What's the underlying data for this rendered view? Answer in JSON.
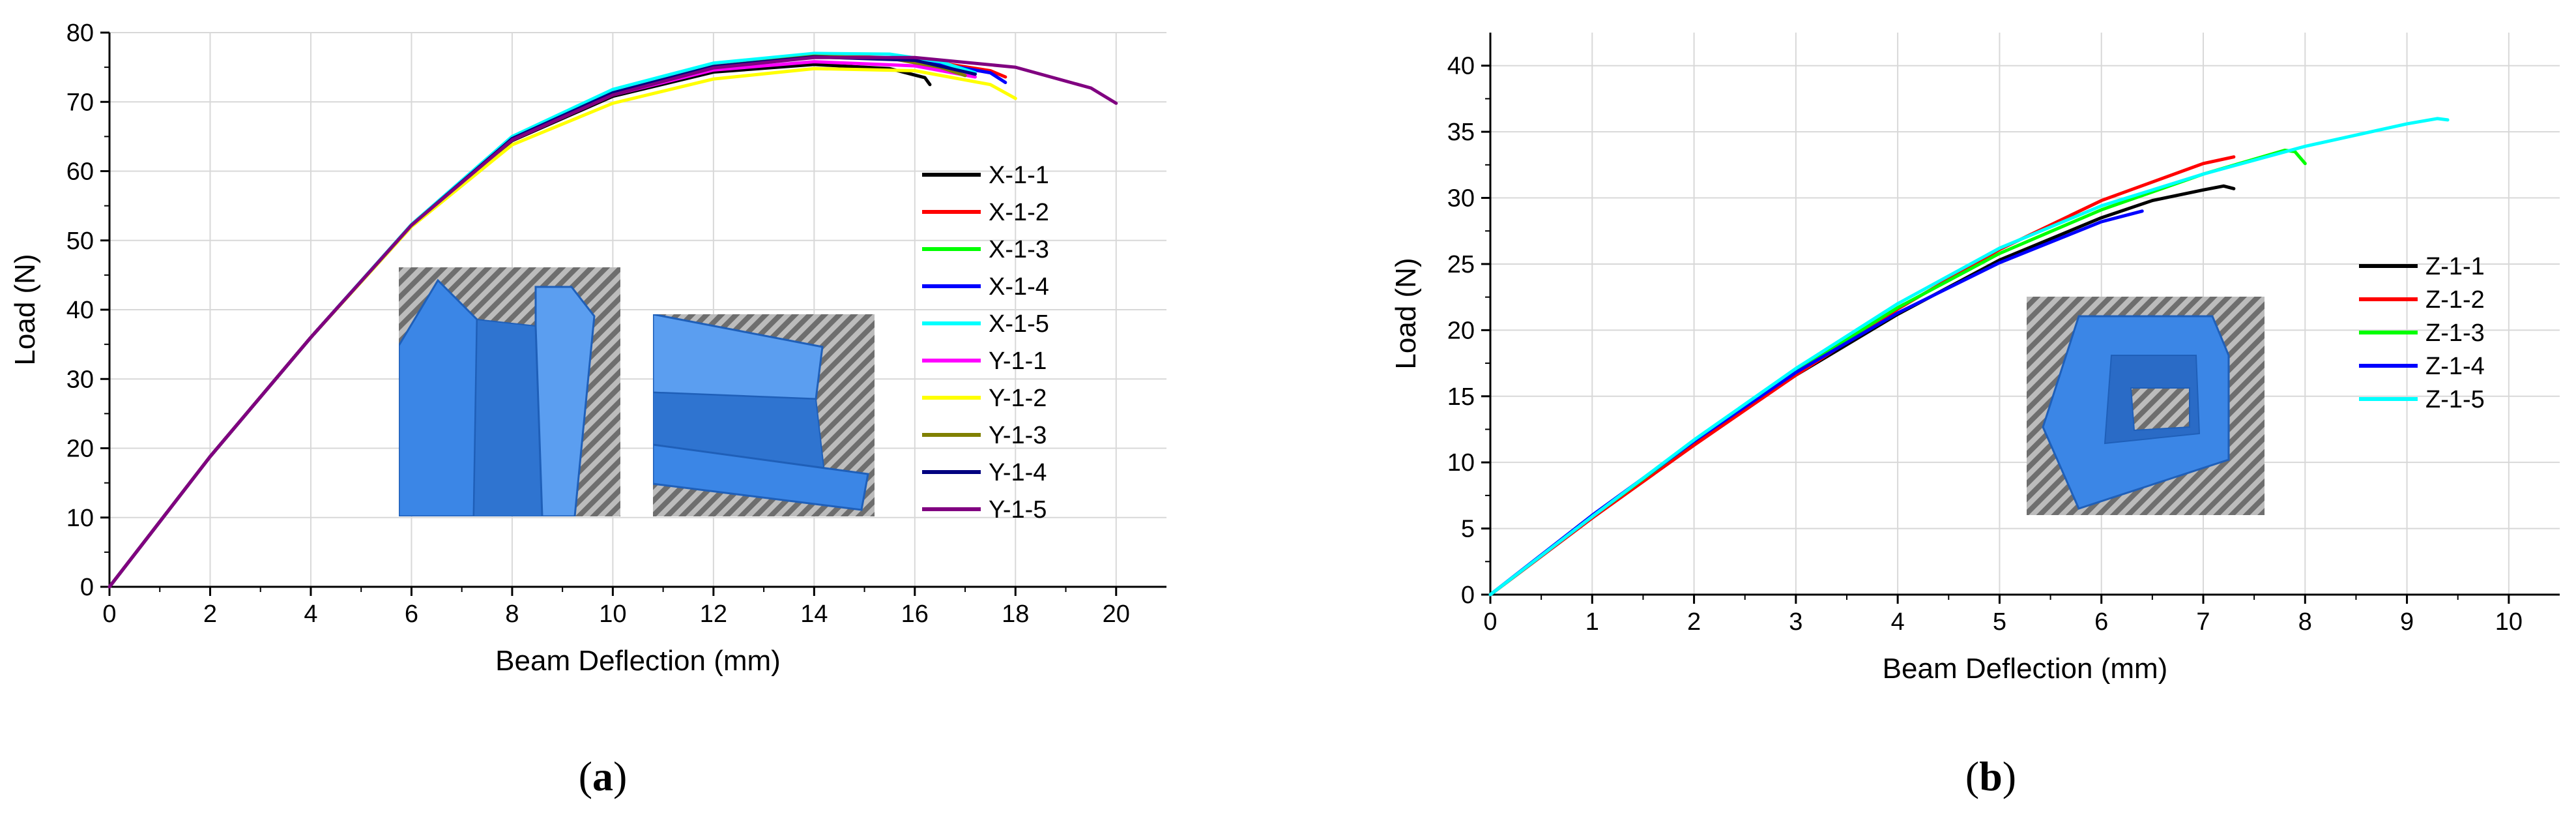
{
  "chart_data": [
    {
      "type": "line",
      "panel": "a",
      "panel_label": "a",
      "xlabel": "Beam Deflection (mm)",
      "ylabel": "Load (N)",
      "xlim": [
        0,
        21
      ],
      "ylim": [
        0,
        80
      ],
      "xticks": [
        0,
        2,
        4,
        6,
        8,
        10,
        12,
        14,
        16,
        18,
        20
      ],
      "yticks": [
        0,
        10,
        20,
        30,
        40,
        50,
        60,
        70,
        80
      ],
      "grid": true,
      "legend_position": "right",
      "series": [
        {
          "name": "X-1-1",
          "color": "#000000",
          "x": [
            0,
            2,
            4,
            6,
            8,
            10,
            12,
            14,
            15.5,
            16.2,
            16.3
          ],
          "y": [
            0,
            18.8,
            36,
            52.2,
            64.4,
            70.8,
            74.3,
            75.4,
            74.8,
            73.5,
            72.5
          ]
        },
        {
          "name": "X-1-2",
          "color": "#ff0000",
          "x": [
            0,
            2,
            4,
            6,
            8,
            10,
            12,
            14,
            16,
            17.5,
            17.8
          ],
          "y": [
            0,
            18.8,
            36,
            52.2,
            64.7,
            71.3,
            75.2,
            76.8,
            76.2,
            74.5,
            73.6
          ]
        },
        {
          "name": "X-1-3",
          "color": "#00ff00",
          "x": [
            0,
            2,
            4,
            6,
            8,
            10,
            12,
            14,
            15.8,
            16.6
          ],
          "y": [
            0,
            18.8,
            36,
            52.2,
            64.6,
            71.2,
            75,
            76.5,
            76.1,
            74.6
          ]
        },
        {
          "name": "X-1-4",
          "color": "#0000ff",
          "x": [
            0,
            2,
            4,
            6,
            8,
            10,
            12,
            14,
            16,
            17.5,
            17.8
          ],
          "y": [
            0,
            18.8,
            36,
            52.2,
            64.7,
            71.3,
            75.1,
            76.6,
            76.1,
            74.2,
            72.8
          ]
        },
        {
          "name": "X-1-5",
          "color": "#00ffff",
          "x": [
            0,
            2,
            4,
            6,
            8,
            10,
            12,
            14,
            15.5,
            16.5,
            17.2
          ],
          "y": [
            0,
            18.8,
            36,
            52.3,
            65,
            71.8,
            75.6,
            77,
            76.9,
            75.8,
            74.2
          ]
        },
        {
          "name": "Y-1-1",
          "color": "#ff00ff",
          "x": [
            0,
            2,
            4,
            6,
            8,
            10,
            12,
            14,
            16,
            17.2
          ],
          "y": [
            0,
            18.8,
            36,
            52.2,
            64.5,
            71,
            74.6,
            75.8,
            75.2,
            73.6
          ]
        },
        {
          "name": "Y-1-2",
          "color": "#ffff00",
          "x": [
            0,
            2,
            4,
            6,
            8,
            10,
            12,
            14,
            16,
            17.5,
            18
          ],
          "y": [
            0,
            18.8,
            36,
            52,
            63.8,
            69.8,
            73.3,
            74.8,
            74.5,
            72.5,
            70.5
          ]
        },
        {
          "name": "Y-1-3",
          "color": "#808000",
          "x": [
            0,
            2,
            4,
            6,
            8,
            10,
            12,
            14,
            15.5,
            16.5,
            17
          ],
          "y": [
            0,
            18.8,
            36,
            52.2,
            64.6,
            71.2,
            75.1,
            76.6,
            76.3,
            75,
            73.8
          ]
        },
        {
          "name": "Y-1-4",
          "color": "#000080",
          "x": [
            0,
            2,
            4,
            6,
            8,
            10,
            12,
            14,
            16,
            17.2
          ],
          "y": [
            0,
            18.8,
            36,
            52.2,
            64.7,
            71.3,
            75.1,
            76.5,
            76,
            74
          ]
        },
        {
          "name": "Y-1-5",
          "color": "#800080",
          "x": [
            0,
            2,
            4,
            6,
            8,
            10,
            12,
            14,
            16,
            18,
            19.5,
            20
          ],
          "y": [
            0,
            18.8,
            36,
            52.2,
            64.5,
            71,
            74.9,
            76.4,
            76.4,
            75,
            72,
            69.8
          ]
        }
      ]
    },
    {
      "type": "line",
      "panel": "b",
      "panel_label": "b",
      "xlabel": "Beam Deflection (mm)",
      "ylabel": "Load (N)",
      "xlim": [
        0,
        10.5
      ],
      "ylim": [
        0,
        42.5
      ],
      "xticks": [
        0,
        1,
        2,
        3,
        4,
        5,
        6,
        7,
        8,
        9,
        10
      ],
      "yticks": [
        0,
        5,
        10,
        15,
        20,
        25,
        30,
        35,
        40
      ],
      "grid": true,
      "legend_position": "right",
      "series": [
        {
          "name": "Z-1-1",
          "color": "#000000",
          "x": [
            0,
            1,
            2,
            3,
            4,
            5,
            6,
            6.5,
            7,
            7.2,
            7.3
          ],
          "y": [
            0,
            5.8,
            11.4,
            16.6,
            21.2,
            25.3,
            28.5,
            29.8,
            30.6,
            30.9,
            30.7
          ]
        },
        {
          "name": "Z-1-2",
          "color": "#ff0000",
          "x": [
            0,
            1,
            2,
            3,
            4,
            5,
            6,
            7,
            7.3
          ],
          "y": [
            0,
            5.8,
            11.3,
            16.6,
            21.6,
            26.1,
            29.8,
            32.6,
            33.1
          ]
        },
        {
          "name": "Z-1-3",
          "color": "#00ff00",
          "x": [
            0,
            1,
            2,
            3,
            4,
            5,
            6,
            7,
            7.8,
            7.9,
            8
          ],
          "y": [
            0,
            5.9,
            11.6,
            16.9,
            21.7,
            25.8,
            29.1,
            31.8,
            33.6,
            33.5,
            32.6
          ]
        },
        {
          "name": "Z-1-4",
          "color": "#0000ff",
          "x": [
            0,
            1,
            2,
            3,
            4,
            5,
            6,
            6.4
          ],
          "y": [
            0,
            6,
            11.6,
            16.8,
            21.3,
            25.1,
            28.2,
            29
          ]
        },
        {
          "name": "Z-1-5",
          "color": "#00ffff",
          "x": [
            0,
            1,
            2,
            3,
            4,
            5,
            6,
            7,
            8,
            9,
            9.3,
            9.4
          ],
          "y": [
            0,
            5.9,
            11.7,
            17.1,
            22,
            26.2,
            29.4,
            31.8,
            33.9,
            35.6,
            36,
            35.9
          ]
        }
      ]
    }
  ]
}
